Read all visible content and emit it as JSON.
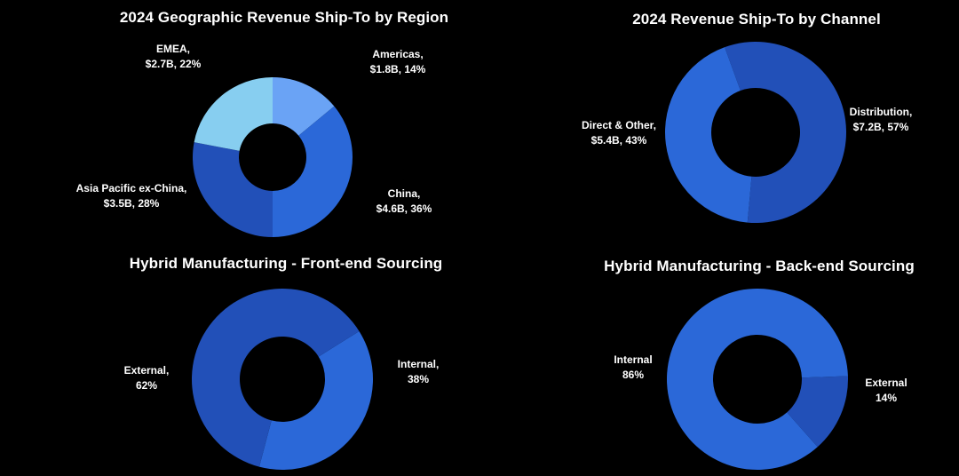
{
  "chart_data": [
    {
      "type": "pie",
      "title": "2024 Geographic Revenue Ship-To by Region",
      "slices": [
        {
          "category": "Americas",
          "value": "$1.8B",
          "percent": 14,
          "color": "#6aa3f5",
          "line1": "Americas,",
          "line2": "$1.8B, 14%"
        },
        {
          "category": "China",
          "value": "$4.6B",
          "percent": 36,
          "color": "#2b68d8",
          "line1": "China,",
          "line2": "$4.6B, 36%"
        },
        {
          "category": "Asia Pacific ex-China",
          "value": "$3.5B",
          "percent": 28,
          "color": "#2250b8",
          "line1": "Asia Pacific ex-China,",
          "line2": "$3.5B, 28%"
        },
        {
          "category": "EMEA",
          "value": "$2.7B",
          "percent": 22,
          "color": "#87cef0",
          "line1": "EMEA,",
          "line2": "$2.7B, 22%"
        }
      ]
    },
    {
      "type": "pie",
      "title": "2024 Revenue Ship-To by Channel",
      "slices": [
        {
          "category": "Distribution",
          "value": "$7.2B",
          "percent": 57,
          "color": "#2250b8",
          "line1": "Distribution,",
          "line2": "$7.2B, 57%"
        },
        {
          "category": "Direct & Other",
          "value": "$5.4B",
          "percent": 43,
          "color": "#2b68d8",
          "line1": "Direct & Other,",
          "line2": "$5.4B, 43%"
        }
      ]
    },
    {
      "type": "pie",
      "title": "Hybrid Manufacturing - Front-end Sourcing",
      "slices": [
        {
          "category": "Internal",
          "percent": 38,
          "color": "#2b68d8",
          "line1": "Internal,",
          "line2": "38%"
        },
        {
          "category": "External",
          "percent": 62,
          "color": "#2250b8",
          "line1": "External,",
          "line2": "62%"
        }
      ]
    },
    {
      "type": "pie",
      "title": "Hybrid Manufacturing - Back-end Sourcing",
      "slices": [
        {
          "category": "External",
          "percent": 14,
          "color": "#2250b8",
          "line1": "External",
          "line2": "14%"
        },
        {
          "category": "Internal",
          "percent": 86,
          "color": "#2b68d8",
          "line1": "Internal",
          "line2": "86%"
        }
      ]
    }
  ]
}
